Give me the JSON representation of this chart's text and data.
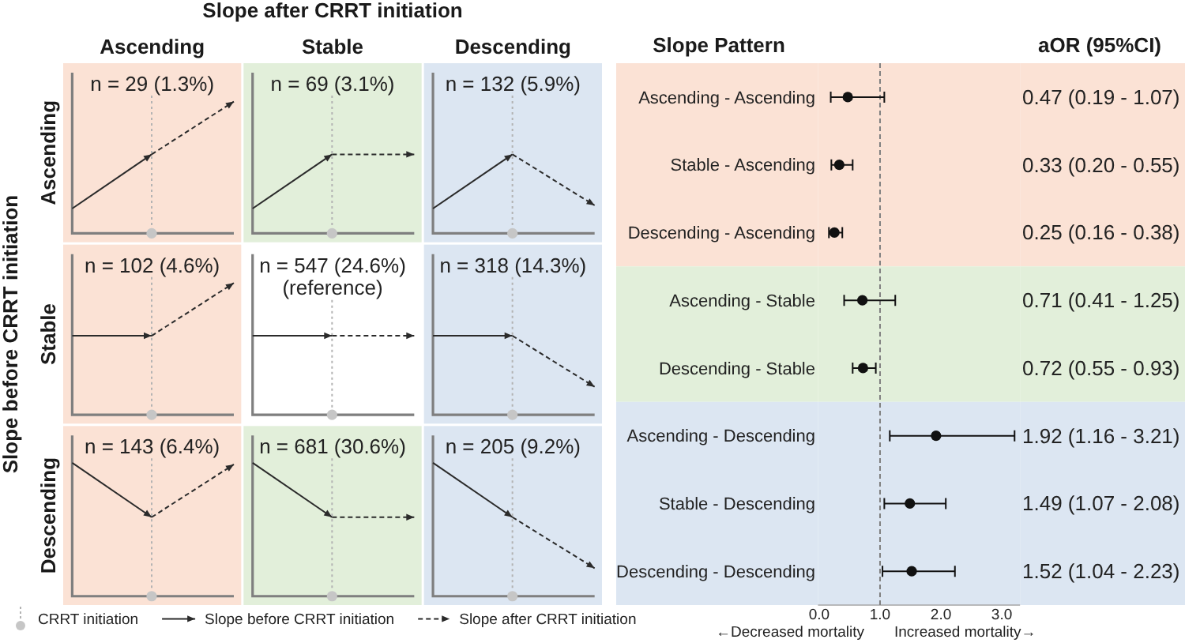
{
  "chart_data": [
    {
      "type": "other",
      "xlabel": "Slope after CRRT initiation",
      "ylabel": "Slope before CRRT initiation",
      "categories": [
        "Ascending",
        "Stable",
        "Descending"
      ],
      "y_categories": [
        "Ascending",
        "Stable",
        "Descending"
      ],
      "cell_labels": [
        [
          "n = 29 (1.3%)",
          "n = 69 (3.1%)",
          "n = 132 (5.9%)"
        ],
        [
          "n = 102 (4.6%)",
          "n = 547 (24.6%)",
          "n = 318 (14.3%)"
        ],
        [
          "n = 143 (6.4%)",
          "n = 681 (30.6%)",
          "n = 205 (9.2%)"
        ]
      ],
      "colors": [
        [
          "#fbe2d5",
          "#e2efda",
          "#dce6f2"
        ],
        [
          "#fbe2d5",
          "#ffffff",
          "#dce6f2"
        ],
        [
          "#fbe2d5",
          "#e2efda",
          "#dce6f2"
        ]
      ],
      "annotations": [
        {
          "text": "(reference)",
          "x": "Stable",
          "y": "Stable"
        },
        "CRRT initiation",
        "Slope before CRRT initiation",
        "Slope after CRRT initiation"
      ]
    },
    {
      "type": "scatter",
      "orientation": "horizontal",
      "ylabel": "Slope Pattern",
      "categories": [
        "Ascending - Ascending",
        "Stable - Ascending",
        "Descending - Ascending",
        "Ascending - Stable",
        "Descending - Stable",
        "Ascending - Descending",
        "Stable - Descending",
        "Descending - Descending"
      ],
      "values": [
        0.47,
        0.33,
        0.25,
        0.71,
        0.72,
        1.92,
        1.49,
        1.52
      ],
      "errors": [
        [
          0.19,
          1.07
        ],
        [
          0.2,
          0.55
        ],
        [
          0.16,
          0.38
        ],
        [
          0.41,
          1.25
        ],
        [
          0.55,
          0.93
        ],
        [
          1.16,
          3.21
        ],
        [
          1.07,
          2.08
        ],
        [
          1.04,
          2.23
        ]
      ],
      "value_labels": [
        "0.47 (0.19 - 1.07)",
        "0.33 (0.20 - 0.55)",
        "0.25 (0.16 - 0.38)",
        "0.71 (0.41 - 1.25)",
        "0.72 (0.55 - 0.93)",
        "1.92 (1.16 - 3.21)",
        "1.49 (1.07 - 2.08)",
        "1.52 (1.04 - 2.23)"
      ],
      "color": "#111111",
      "marker": "circle",
      "xlim": [
        -0.02,
        3.3
      ],
      "xticks": [
        {
          "value": 0,
          "label": "0.0"
        },
        {
          "value": 1,
          "label": "1.0"
        },
        {
          "value": 2,
          "label": "2.0"
        },
        {
          "value": 3,
          "label": "3.0"
        }
      ],
      "ref_lines": [
        {
          "axis": "x",
          "value": 1,
          "line_style": "dashed",
          "color": "#808080"
        }
      ],
      "bands": [
        {
          "axis": "y",
          "from": "Ascending - Ascending",
          "to": "Descending - Ascending",
          "color": "#fbe2d5"
        },
        {
          "axis": "y",
          "from": "Ascending - Stable",
          "to": "Descending - Stable",
          "color": "#e2efda"
        },
        {
          "axis": "y",
          "from": "Ascending - Descending",
          "to": "Descending - Descending",
          "color": "#dce6f2"
        }
      ],
      "annotations": [
        "aOR (95%CI)",
        "←Decreased mortality",
        "Increased mortality→"
      ]
    }
  ]
}
